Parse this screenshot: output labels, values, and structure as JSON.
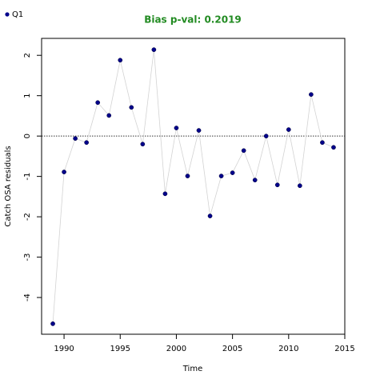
{
  "chart_data": {
    "type": "scatter",
    "title": "Bias p-val: 0.2019",
    "title_color": "#228b22",
    "xlabel": "Time",
    "ylabel": "Catch OSA residuals",
    "x": [
      1989,
      1990,
      1991,
      1992,
      1993,
      1994,
      1995,
      1996,
      1997,
      1998,
      1999,
      2000,
      2001,
      2002,
      2003,
      2004,
      2005,
      2006,
      2007,
      2008,
      2009,
      2010,
      2011,
      2012,
      2013,
      2014
    ],
    "series": [
      {
        "name": "Q1",
        "color": "#00008b",
        "line_color": "#d3d3d3",
        "values": [
          -4.65,
          -0.89,
          -0.06,
          -0.16,
          0.83,
          0.51,
          1.88,
          0.71,
          -0.2,
          2.14,
          -1.43,
          0.2,
          -0.99,
          0.14,
          -1.98,
          -0.99,
          -0.91,
          -0.36,
          -1.09,
          0.0,
          -1.21,
          0.16,
          -1.23,
          1.03,
          -0.16,
          -0.28
        ]
      }
    ],
    "hline": 0,
    "xlim": [
      1988,
      2015
    ],
    "xticks": [
      1990,
      1995,
      2000,
      2005,
      2010,
      2015
    ],
    "ylim": [
      -4.91,
      2.42
    ],
    "yticks": [
      -4,
      -3,
      -2,
      -1,
      0,
      1,
      2
    ],
    "legend": "top-left"
  }
}
